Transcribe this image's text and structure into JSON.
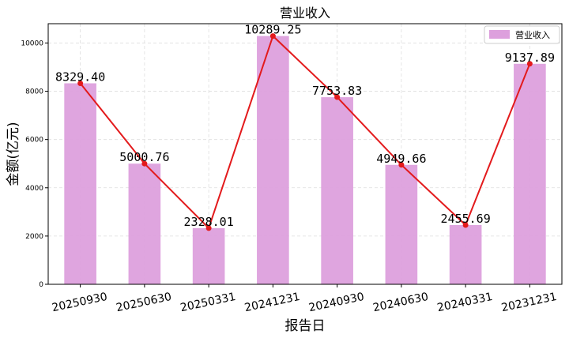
{
  "chart_data": {
    "type": "bar",
    "title": "营业收入",
    "xlabel": "报告日",
    "ylabel": "金额(亿元)",
    "categories": [
      "20250930",
      "20250630",
      "20250331",
      "20241231",
      "20240930",
      "20240630",
      "20240331",
      "20231231"
    ],
    "series": [
      {
        "name": "营业收入",
        "type": "bar",
        "values": [
          8329.4,
          5000.76,
          2328.01,
          10289.25,
          7753.83,
          4949.66,
          2455.69,
          9137.89
        ],
        "color": "#DDA0DD"
      },
      {
        "type": "line",
        "values": [
          8329.4,
          5000.76,
          2328.01,
          10289.25,
          7753.83,
          4949.66,
          2455.69,
          9137.89
        ],
        "color": "#E31A1C"
      }
    ],
    "data_labels": [
      "8329.40",
      "5000.76",
      "2328.01",
      "10289.25",
      "7753.83",
      "4949.66",
      "2455.69",
      "9137.89"
    ],
    "ylim": [
      0,
      10800
    ],
    "yticks": [
      0,
      2000,
      4000,
      6000,
      8000,
      10000
    ],
    "grid": true,
    "legend_position": "top-right"
  }
}
